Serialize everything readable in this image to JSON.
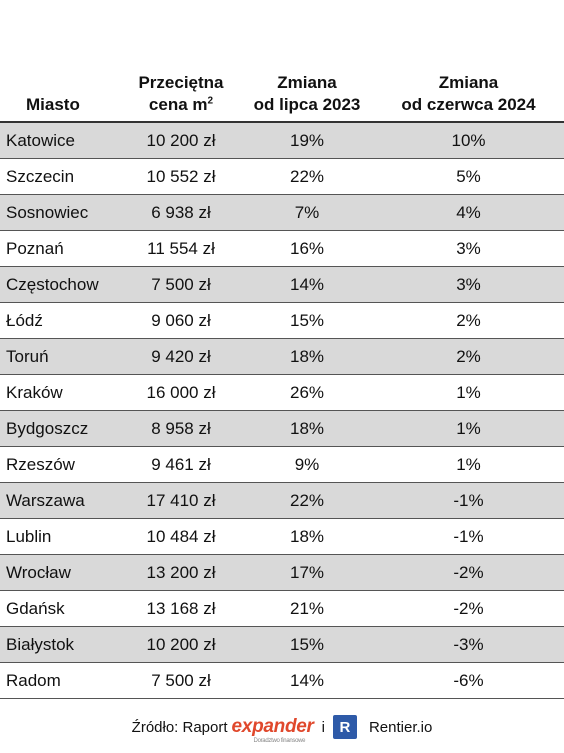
{
  "chart_data": {
    "type": "table",
    "columns": [
      {
        "line1": "",
        "line2": "Miasto"
      },
      {
        "line1": "Przeciętna",
        "line2": "cena m",
        "sup": "2"
      },
      {
        "line1": "Zmiana",
        "line2": "od lipca 2023"
      },
      {
        "line1": "Zmiana",
        "line2": "od czerwca 2024"
      }
    ],
    "rows": [
      [
        "Katowice",
        "10 200 zł",
        "19%",
        "10%"
      ],
      [
        "Szczecin",
        "10 552 zł",
        "22%",
        "5%"
      ],
      [
        "Sosnowiec",
        "6 938 zł",
        "7%",
        "4%"
      ],
      [
        "Poznań",
        "11 554 zł",
        "16%",
        "3%"
      ],
      [
        "Częstochow",
        "7 500 zł",
        "14%",
        "3%"
      ],
      [
        "Łódź",
        "9 060 zł",
        "15%",
        "2%"
      ],
      [
        "Toruń",
        "9 420 zł",
        "18%",
        "2%"
      ],
      [
        "Kraków",
        "16 000 zł",
        "26%",
        "1%"
      ],
      [
        "Bydgoszcz",
        "8 958 zł",
        "18%",
        "1%"
      ],
      [
        "Rzeszów",
        "9 461 zł",
        "9%",
        "1%"
      ],
      [
        "Warszawa",
        "17 410 zł",
        "22%",
        "-1%"
      ],
      [
        "Lublin",
        "10 484 zł",
        "18%",
        "-1%"
      ],
      [
        "Wrocław",
        "13 200 zł",
        "17%",
        "-2%"
      ],
      [
        "Gdańsk",
        "13 168 zł",
        "21%",
        "-2%"
      ],
      [
        "Białystok",
        "10 200 zł",
        "15%",
        "-3%"
      ],
      [
        "Radom",
        "7 500 zł",
        "14%",
        "-6%"
      ]
    ],
    "row_shading": [
      "#d9d9d9",
      "#ffffff"
    ]
  },
  "footer": {
    "source_label": "Źródło: Raport",
    "expander_logo": "expander",
    "expander_subtext": "Doradztwo finansowe",
    "conjunction": "i",
    "rentier_icon": "R",
    "rentier_name": "Rentier.io"
  }
}
